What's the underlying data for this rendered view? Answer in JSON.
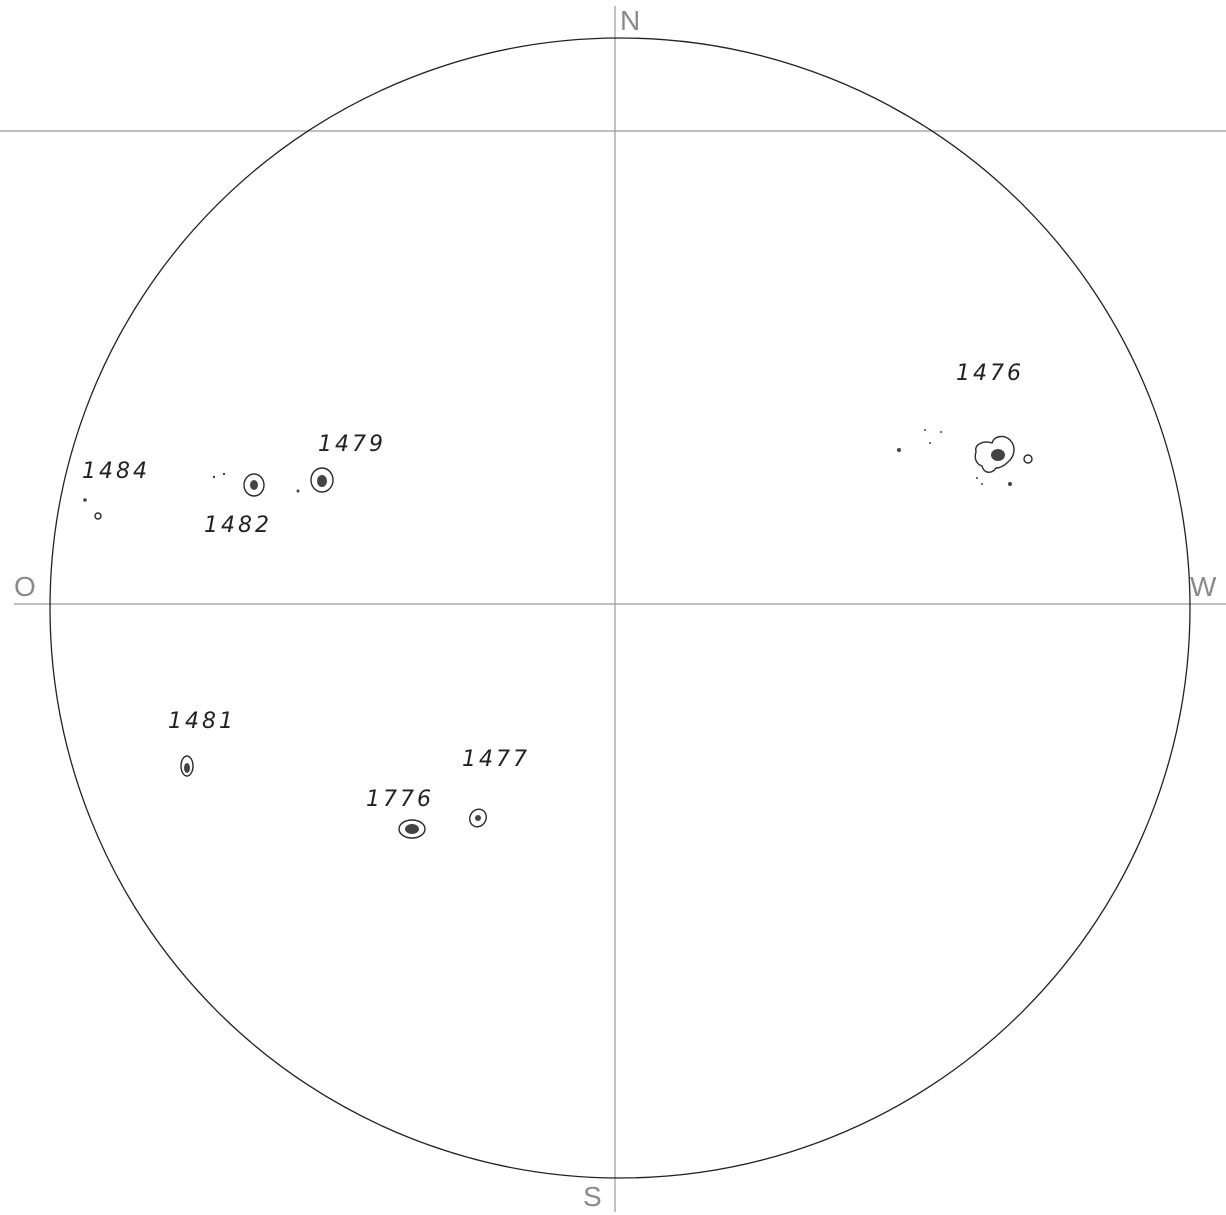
{
  "compass": {
    "north": "N",
    "south": "S",
    "east": "O",
    "west": "W"
  },
  "groups": [
    {
      "label": "1476"
    },
    {
      "label": "1479"
    },
    {
      "label": "1484"
    },
    {
      "label": "1482"
    },
    {
      "label": "1481"
    },
    {
      "label": "1477"
    },
    {
      "label": "1776"
    }
  ],
  "colors": {
    "ink": "#2a2a2a",
    "guide": "#9a9a9a",
    "background": "#ffffff"
  }
}
